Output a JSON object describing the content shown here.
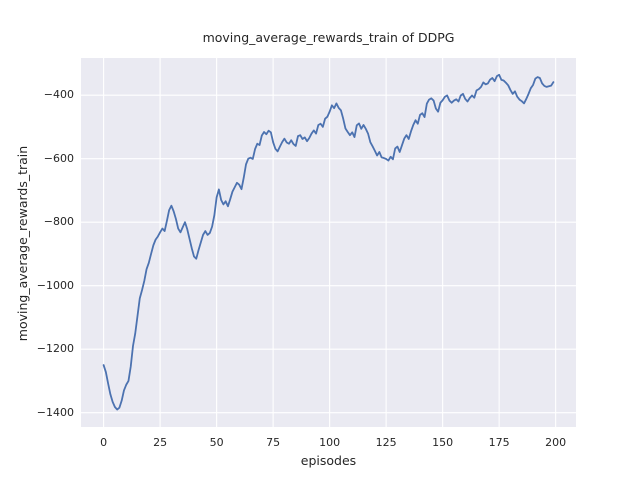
{
  "figure": {
    "background": "#ffffff",
    "axes_background": "#eaeaf2",
    "grid_color": "#ffffff",
    "text_color": "#262626"
  },
  "chart_data": {
    "type": "line",
    "title": "moving_average_rewards_train of DDPG",
    "xlabel": "episodes",
    "ylabel": "moving_average_rewards_train",
    "grid": true,
    "legend": "none",
    "line_color": "#4c72b0",
    "line_width": 1.8,
    "xlim": [
      -10,
      209
    ],
    "ylim": [
      -1445,
      -283
    ],
    "xticks": [
      0,
      25,
      50,
      75,
      100,
      125,
      150,
      175,
      200
    ],
    "xtick_labels": [
      "0",
      "25",
      "50",
      "75",
      "100",
      "125",
      "150",
      "175",
      "200"
    ],
    "yticks": [
      -400,
      -600,
      -800,
      -1000,
      -1200,
      -1400
    ],
    "ytick_labels": [
      "−400",
      "−600",
      "−800",
      "−1000",
      "−1200",
      "−1400"
    ],
    "series": [
      {
        "name": "moving_average_rewards_train",
        "x_start": 0,
        "x_step": 1,
        "values": [
          -1250,
          -1272,
          -1308,
          -1342,
          -1366,
          -1382,
          -1390,
          -1384,
          -1362,
          -1330,
          -1312,
          -1300,
          -1255,
          -1190,
          -1150,
          -1095,
          -1040,
          -1014,
          -985,
          -948,
          -928,
          -900,
          -873,
          -855,
          -845,
          -832,
          -820,
          -828,
          -796,
          -762,
          -748,
          -766,
          -790,
          -820,
          -832,
          -816,
          -800,
          -822,
          -852,
          -882,
          -908,
          -915,
          -888,
          -864,
          -840,
          -828,
          -840,
          -834,
          -814,
          -778,
          -722,
          -697,
          -730,
          -744,
          -734,
          -750,
          -728,
          -704,
          -690,
          -676,
          -682,
          -696,
          -660,
          -618,
          -600,
          -597,
          -601,
          -570,
          -553,
          -557,
          -527,
          -516,
          -523,
          -512,
          -517,
          -548,
          -569,
          -577,
          -562,
          -548,
          -537,
          -549,
          -553,
          -542,
          -554,
          -560,
          -529,
          -526,
          -538,
          -533,
          -545,
          -535,
          -521,
          -511,
          -521,
          -494,
          -490,
          -500,
          -474,
          -468,
          -452,
          -432,
          -441,
          -426,
          -440,
          -448,
          -474,
          -505,
          -516,
          -526,
          -517,
          -532,
          -495,
          -489,
          -506,
          -494,
          -506,
          -521,
          -548,
          -561,
          -575,
          -590,
          -579,
          -596,
          -598,
          -601,
          -606,
          -594,
          -602,
          -568,
          -562,
          -579,
          -558,
          -537,
          -526,
          -538,
          -514,
          -494,
          -479,
          -490,
          -462,
          -457,
          -469,
          -427,
          -414,
          -410,
          -417,
          -442,
          -452,
          -424,
          -416,
          -405,
          -401,
          -417,
          -424,
          -417,
          -413,
          -420,
          -401,
          -396,
          -412,
          -420,
          -409,
          -401,
          -408,
          -385,
          -381,
          -374,
          -360,
          -366,
          -363,
          -351,
          -346,
          -356,
          -340,
          -336,
          -352,
          -354,
          -361,
          -369,
          -384,
          -396,
          -388,
          -405,
          -414,
          -419,
          -426,
          -412,
          -396,
          -378,
          -368,
          -348,
          -343,
          -346,
          -363,
          -371,
          -374,
          -372,
          -370,
          -359
        ]
      }
    ]
  }
}
